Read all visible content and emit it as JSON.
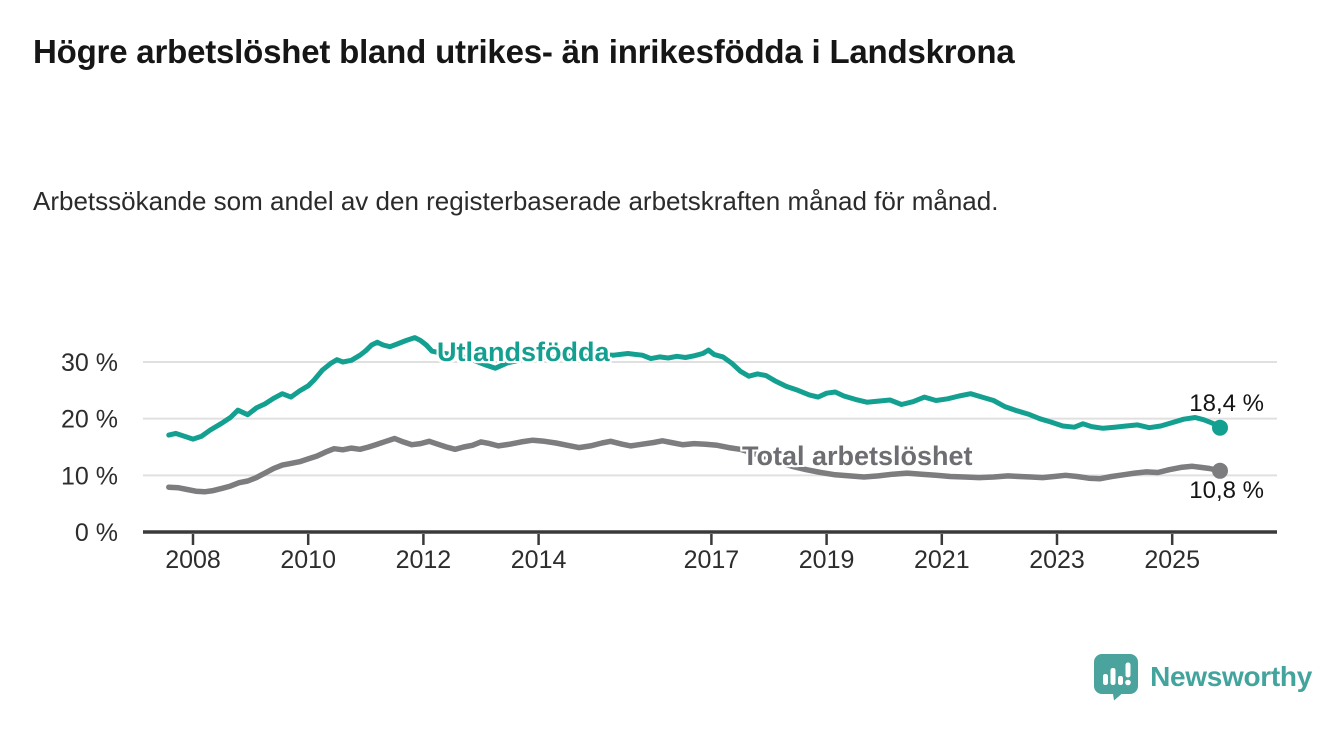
{
  "header": {
    "title": "Högre arbetslöshet bland utrikes- än inrikesfödda i Landskrona",
    "subtitle": "Arbetssökande som andel av den registerbaserade arbetskraften månad för månad."
  },
  "branding": {
    "logo_text": "Newsworthy"
  },
  "colors": {
    "accent_teal": "#14a091",
    "series_gray": "#7d7d80",
    "label_gray": "#6d6d72",
    "grid": "#e0e0e0",
    "axis": "#3a3a3a",
    "tick_text": "#2d2d2d",
    "logo_teal": "#4aa39c"
  },
  "chart_data": {
    "type": "line",
    "title": "Högre arbetslöshet bland utrikes- än inrikesfödda i Landskrona",
    "subtitle": "Arbetssökande som andel av den registerbaserade arbetskraften månad för månad.",
    "unit": "%",
    "grid": "horizontal",
    "legend_position": "inline-labels",
    "x_axis": {
      "ticks": [
        2008,
        2010,
        2012,
        2014,
        2017,
        2019,
        2021,
        2023,
        2025
      ],
      "range": [
        2007.5,
        2026.0
      ]
    },
    "y_axis": {
      "range": [
        0,
        36
      ],
      "ticks": [
        {
          "value": 0,
          "label": "0 %"
        },
        {
          "value": 10,
          "label": "10 %"
        },
        {
          "value": 20,
          "label": "20 %"
        },
        {
          "value": 30,
          "label": "30 %"
        }
      ]
    },
    "series": [
      {
        "name": "Utlandsfödda",
        "color": "#14a091",
        "end_label": "18,4 %",
        "end_value": 18.4,
        "points": [
          [
            2007.58,
            17.1
          ],
          [
            2007.7,
            17.4
          ],
          [
            2007.85,
            16.9
          ],
          [
            2008.0,
            16.4
          ],
          [
            2008.15,
            16.9
          ],
          [
            2008.3,
            18.0
          ],
          [
            2008.5,
            19.2
          ],
          [
            2008.65,
            20.2
          ],
          [
            2008.78,
            21.5
          ],
          [
            2008.95,
            20.7
          ],
          [
            2009.1,
            21.9
          ],
          [
            2009.25,
            22.6
          ],
          [
            2009.4,
            23.6
          ],
          [
            2009.55,
            24.4
          ],
          [
            2009.7,
            23.8
          ],
          [
            2009.85,
            24.9
          ],
          [
            2010.0,
            25.8
          ],
          [
            2010.1,
            26.8
          ],
          [
            2010.25,
            28.6
          ],
          [
            2010.4,
            29.8
          ],
          [
            2010.5,
            30.4
          ],
          [
            2010.6,
            30.0
          ],
          [
            2010.75,
            30.3
          ],
          [
            2010.9,
            31.2
          ],
          [
            2011.0,
            32.0
          ],
          [
            2011.1,
            33.0
          ],
          [
            2011.2,
            33.5
          ],
          [
            2011.3,
            33.0
          ],
          [
            2011.42,
            32.7
          ],
          [
            2011.55,
            33.2
          ],
          [
            2011.7,
            33.8
          ],
          [
            2011.85,
            34.3
          ],
          [
            2011.95,
            33.8
          ],
          [
            2012.05,
            33.0
          ],
          [
            2012.15,
            31.9
          ],
          [
            2012.3,
            31.6
          ],
          [
            2012.5,
            31.3
          ],
          [
            2012.7,
            30.8
          ],
          [
            2012.9,
            30.2
          ],
          [
            2013.1,
            29.4
          ],
          [
            2013.25,
            28.9
          ],
          [
            2013.45,
            29.8
          ],
          [
            2013.65,
            30.3
          ],
          [
            2013.85,
            30.7
          ],
          [
            2014.05,
            30.9
          ],
          [
            2014.3,
            30.7
          ],
          [
            2014.55,
            31.1
          ],
          [
            2014.8,
            31.0
          ],
          [
            2015.05,
            31.3
          ],
          [
            2015.3,
            31.2
          ],
          [
            2015.55,
            31.5
          ],
          [
            2015.8,
            31.2
          ],
          [
            2015.95,
            30.6
          ],
          [
            2016.1,
            30.9
          ],
          [
            2016.25,
            30.7
          ],
          [
            2016.4,
            31.0
          ],
          [
            2016.55,
            30.8
          ],
          [
            2016.7,
            31.1
          ],
          [
            2016.85,
            31.5
          ],
          [
            2016.95,
            32.1
          ],
          [
            2017.05,
            31.3
          ],
          [
            2017.2,
            30.9
          ],
          [
            2017.35,
            29.8
          ],
          [
            2017.5,
            28.4
          ],
          [
            2017.65,
            27.5
          ],
          [
            2017.8,
            27.9
          ],
          [
            2017.95,
            27.6
          ],
          [
            2018.1,
            26.7
          ],
          [
            2018.3,
            25.7
          ],
          [
            2018.5,
            25.0
          ],
          [
            2018.7,
            24.2
          ],
          [
            2018.85,
            23.8
          ],
          [
            2019.0,
            24.5
          ],
          [
            2019.15,
            24.7
          ],
          [
            2019.3,
            24.0
          ],
          [
            2019.5,
            23.4
          ],
          [
            2019.7,
            22.9
          ],
          [
            2019.9,
            23.1
          ],
          [
            2020.1,
            23.3
          ],
          [
            2020.3,
            22.5
          ],
          [
            2020.5,
            23.0
          ],
          [
            2020.7,
            23.8
          ],
          [
            2020.9,
            23.2
          ],
          [
            2021.1,
            23.5
          ],
          [
            2021.3,
            24.0
          ],
          [
            2021.5,
            24.4
          ],
          [
            2021.7,
            23.8
          ],
          [
            2021.9,
            23.2
          ],
          [
            2022.1,
            22.1
          ],
          [
            2022.3,
            21.4
          ],
          [
            2022.5,
            20.8
          ],
          [
            2022.7,
            20.0
          ],
          [
            2022.9,
            19.4
          ],
          [
            2023.1,
            18.7
          ],
          [
            2023.3,
            18.5
          ],
          [
            2023.45,
            19.1
          ],
          [
            2023.6,
            18.6
          ],
          [
            2023.8,
            18.3
          ],
          [
            2024.0,
            18.5
          ],
          [
            2024.2,
            18.7
          ],
          [
            2024.4,
            18.9
          ],
          [
            2024.6,
            18.4
          ],
          [
            2024.8,
            18.7
          ],
          [
            2025.0,
            19.3
          ],
          [
            2025.2,
            19.9
          ],
          [
            2025.4,
            20.2
          ],
          [
            2025.55,
            19.8
          ],
          [
            2025.7,
            19.2
          ],
          [
            2025.83,
            18.4
          ]
        ]
      },
      {
        "name": "Total arbetslöshet",
        "color": "#7d7d80",
        "end_label": "10,8 %",
        "end_value": 10.8,
        "points": [
          [
            2007.58,
            7.9
          ],
          [
            2007.75,
            7.8
          ],
          [
            2007.9,
            7.5
          ],
          [
            2008.05,
            7.2
          ],
          [
            2008.2,
            7.1
          ],
          [
            2008.35,
            7.3
          ],
          [
            2008.5,
            7.7
          ],
          [
            2008.65,
            8.1
          ],
          [
            2008.8,
            8.7
          ],
          [
            2008.95,
            9.0
          ],
          [
            2009.1,
            9.6
          ],
          [
            2009.25,
            10.4
          ],
          [
            2009.4,
            11.2
          ],
          [
            2009.55,
            11.8
          ],
          [
            2009.7,
            12.1
          ],
          [
            2009.85,
            12.4
          ],
          [
            2010.0,
            12.9
          ],
          [
            2010.15,
            13.4
          ],
          [
            2010.3,
            14.1
          ],
          [
            2010.45,
            14.7
          ],
          [
            2010.6,
            14.5
          ],
          [
            2010.75,
            14.8
          ],
          [
            2010.9,
            14.6
          ],
          [
            2011.05,
            15.0
          ],
          [
            2011.2,
            15.5
          ],
          [
            2011.35,
            16.0
          ],
          [
            2011.5,
            16.5
          ],
          [
            2011.65,
            15.9
          ],
          [
            2011.8,
            15.4
          ],
          [
            2011.95,
            15.6
          ],
          [
            2012.1,
            16.0
          ],
          [
            2012.25,
            15.5
          ],
          [
            2012.4,
            15.0
          ],
          [
            2012.55,
            14.6
          ],
          [
            2012.7,
            15.0
          ],
          [
            2012.85,
            15.3
          ],
          [
            2013.0,
            15.9
          ],
          [
            2013.15,
            15.6
          ],
          [
            2013.3,
            15.2
          ],
          [
            2013.5,
            15.5
          ],
          [
            2013.7,
            15.9
          ],
          [
            2013.9,
            16.2
          ],
          [
            2014.1,
            16.0
          ],
          [
            2014.3,
            15.7
          ],
          [
            2014.5,
            15.3
          ],
          [
            2014.7,
            14.9
          ],
          [
            2014.9,
            15.2
          ],
          [
            2015.1,
            15.7
          ],
          [
            2015.25,
            16.0
          ],
          [
            2015.45,
            15.5
          ],
          [
            2015.6,
            15.2
          ],
          [
            2015.8,
            15.5
          ],
          [
            2016.0,
            15.8
          ],
          [
            2016.15,
            16.1
          ],
          [
            2016.3,
            15.8
          ],
          [
            2016.5,
            15.4
          ],
          [
            2016.7,
            15.6
          ],
          [
            2016.9,
            15.5
          ],
          [
            2017.1,
            15.3
          ],
          [
            2017.3,
            14.9
          ],
          [
            2017.5,
            14.6
          ],
          [
            2017.7,
            14.0
          ],
          [
            2017.9,
            13.3
          ],
          [
            2018.15,
            12.4
          ],
          [
            2018.4,
            11.6
          ],
          [
            2018.65,
            11.0
          ],
          [
            2018.9,
            10.5
          ],
          [
            2019.15,
            10.1
          ],
          [
            2019.4,
            9.9
          ],
          [
            2019.65,
            9.7
          ],
          [
            2019.9,
            9.9
          ],
          [
            2020.15,
            10.2
          ],
          [
            2020.4,
            10.4
          ],
          [
            2020.65,
            10.2
          ],
          [
            2020.9,
            10.0
          ],
          [
            2021.15,
            9.8
          ],
          [
            2021.4,
            9.7
          ],
          [
            2021.65,
            9.6
          ],
          [
            2021.9,
            9.7
          ],
          [
            2022.15,
            9.9
          ],
          [
            2022.35,
            9.8
          ],
          [
            2022.55,
            9.7
          ],
          [
            2022.75,
            9.6
          ],
          [
            2022.95,
            9.8
          ],
          [
            2023.15,
            10.0
          ],
          [
            2023.35,
            9.8
          ],
          [
            2023.55,
            9.5
          ],
          [
            2023.75,
            9.4
          ],
          [
            2023.95,
            9.8
          ],
          [
            2024.15,
            10.1
          ],
          [
            2024.35,
            10.4
          ],
          [
            2024.55,
            10.6
          ],
          [
            2024.75,
            10.5
          ],
          [
            2024.95,
            11.0
          ],
          [
            2025.15,
            11.4
          ],
          [
            2025.35,
            11.6
          ],
          [
            2025.5,
            11.4
          ],
          [
            2025.65,
            11.2
          ],
          [
            2025.83,
            10.8
          ]
        ]
      }
    ]
  }
}
